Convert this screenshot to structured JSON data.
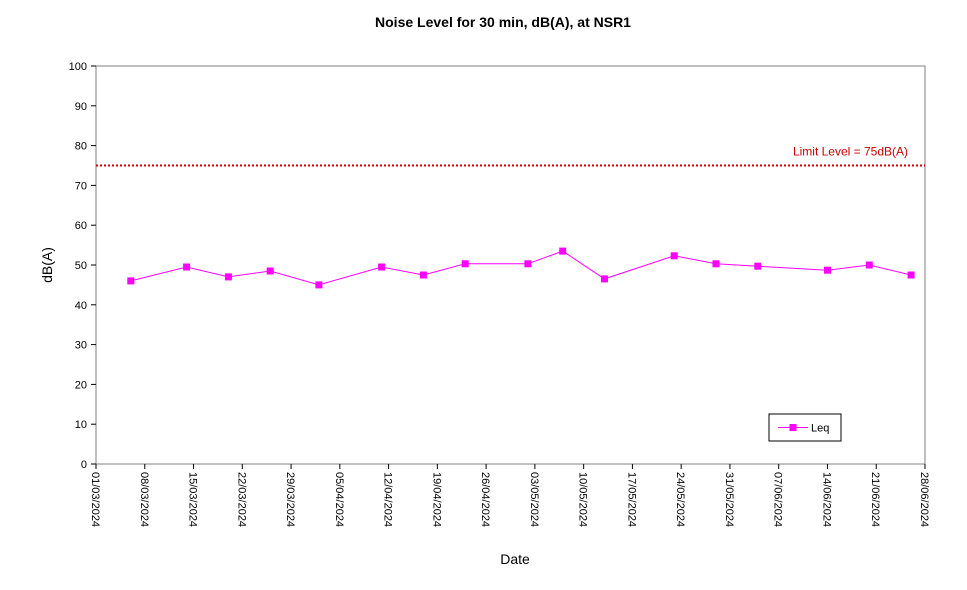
{
  "chart_data": {
    "type": "line",
    "title": "Noise Level for 30 min, dB(A), at NSR1",
    "xlabel": "Date",
    "ylabel": "dB(A)",
    "ylim": [
      0,
      100
    ],
    "yticks": [
      0,
      10,
      20,
      30,
      40,
      50,
      60,
      70,
      80,
      90,
      100
    ],
    "xlim": [
      "2024-03-01",
      "2024-06-28"
    ],
    "xtick_labels": [
      "01/03/2024",
      "08/03/2024",
      "15/03/2024",
      "22/03/2024",
      "29/03/2024",
      "05/04/2024",
      "12/04/2024",
      "19/04/2024",
      "26/04/2024",
      "03/05/2024",
      "10/05/2024",
      "17/05/2024",
      "24/05/2024",
      "31/05/2024",
      "07/06/2024",
      "14/06/2024",
      "21/06/2024",
      "28/06/2024"
    ],
    "series": [
      {
        "name": "Leq",
        "color": "#FF00FF",
        "x": [
          "2024-03-06",
          "2024-03-14",
          "2024-03-20",
          "2024-03-26",
          "2024-04-02",
          "2024-04-11",
          "2024-04-17",
          "2024-04-23",
          "2024-05-02",
          "2024-05-07",
          "2024-05-13",
          "2024-05-23",
          "2024-05-29",
          "2024-06-04",
          "2024-06-14",
          "2024-06-20",
          "2024-06-26"
        ],
        "values": [
          46.0,
          49.5,
          47.0,
          48.5,
          45.0,
          49.5,
          47.5,
          50.3,
          50.3,
          53.5,
          46.5,
          52.3,
          50.3,
          49.7,
          48.7,
          50.0,
          47.5
        ]
      }
    ],
    "limit_line": {
      "value": 75,
      "label": "Limit Level = 75dB(A)",
      "color": "#CC0000"
    },
    "legend": {
      "position": "bottom-right"
    },
    "grid": false
  }
}
